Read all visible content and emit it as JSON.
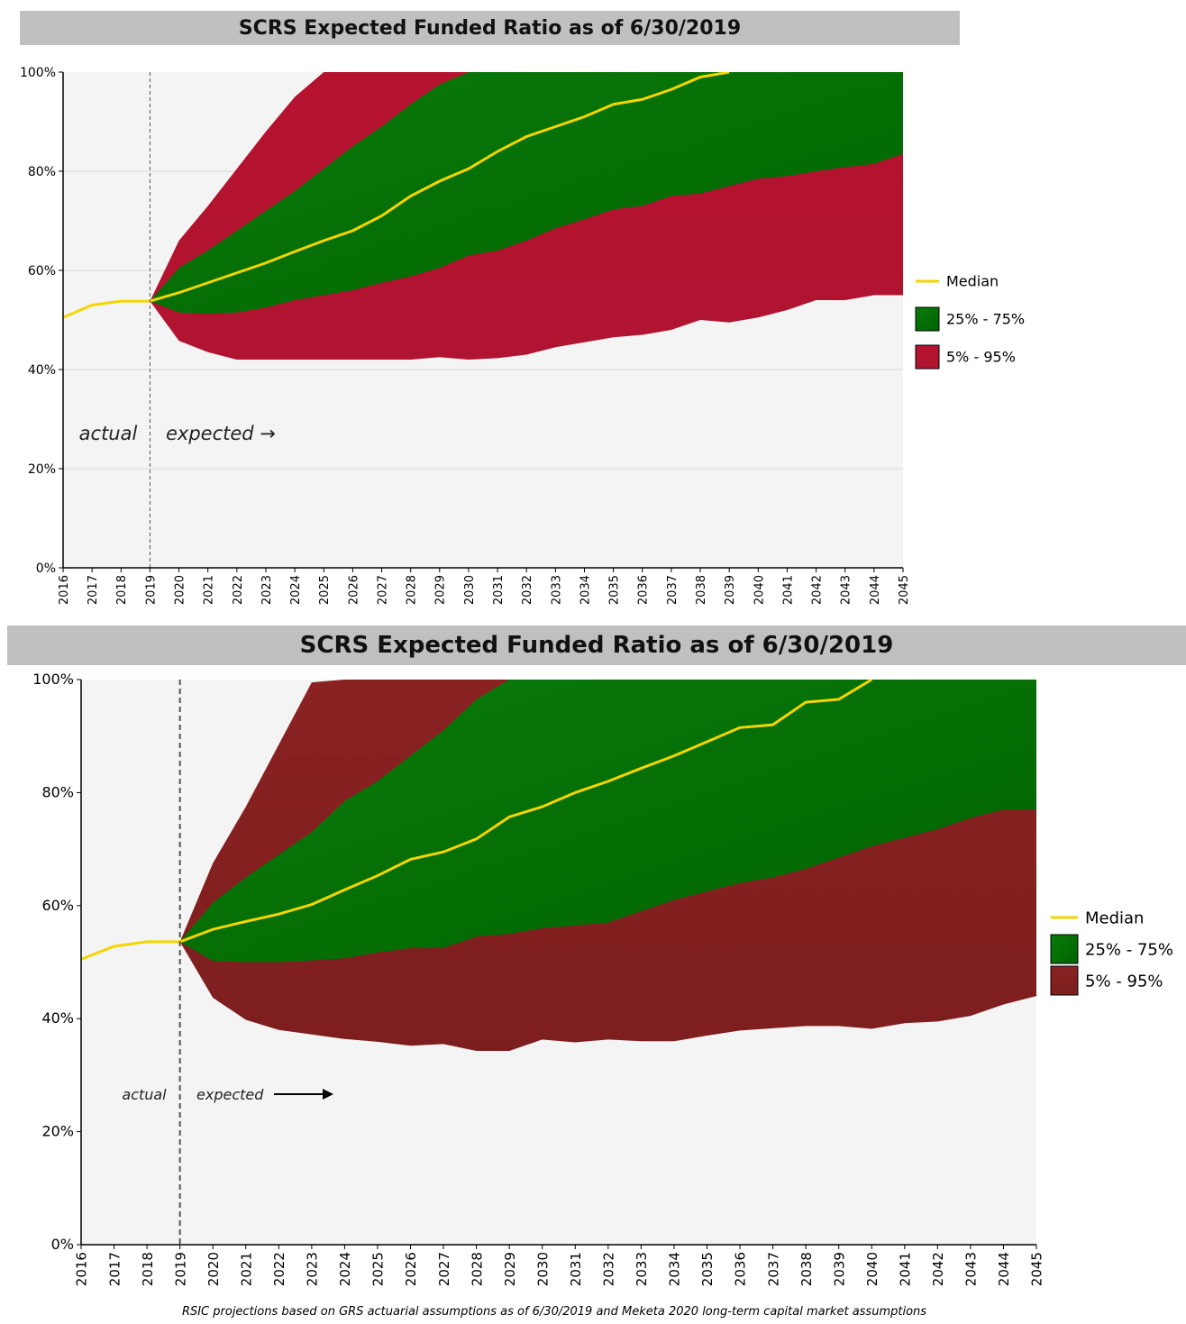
{
  "footnote": "RSIC projections based on GRS actuarial assumptions as of 6/30/2019 and Meketa 2020 long-term capital market assumptions",
  "chart_data": [
    {
      "type": "area",
      "title": "SCRS Expected Funded Ratio as of 6/30/2019",
      "xlabel": "",
      "ylabel": "",
      "ylim": [
        0,
        100
      ],
      "y_tick_labels": [
        "0%",
        "20%",
        "40%",
        "60%",
        "80%",
        "100%"
      ],
      "x": [
        2016,
        2017,
        2018,
        2019,
        2020,
        2021,
        2022,
        2023,
        2024,
        2025,
        2026,
        2027,
        2028,
        2029,
        2030,
        2031,
        2032,
        2033,
        2034,
        2035,
        2036,
        2037,
        2038,
        2039,
        2040,
        2041,
        2042,
        2043,
        2044,
        2045
      ],
      "grid": true,
      "legend_position": "right",
      "annotations": {
        "actual": "actual",
        "expected": "expected →"
      },
      "actual_x": [
        2016,
        2017,
        2018,
        2019
      ],
      "actual_y": [
        50.5,
        53,
        53.8,
        53.8
      ],
      "series": [
        {
          "name": "Median",
          "x": [
            2019,
            2020,
            2021,
            2022,
            2023,
            2024,
            2025,
            2026,
            2027,
            2028,
            2029,
            2030,
            2031,
            2032,
            2033,
            2034,
            2035,
            2036,
            2037,
            2038,
            2039
          ],
          "values": [
            53.8,
            55.5,
            57.5,
            59.5,
            61.5,
            63.8,
            66,
            68,
            71,
            75,
            78,
            80.5,
            84,
            87,
            89,
            91,
            93.5,
            94.5,
            96.5,
            99,
            100
          ]
        },
        {
          "name": "25% - 75%",
          "x": [
            2019,
            2020,
            2021,
            2022,
            2023,
            2024,
            2025,
            2026,
            2027,
            2028,
            2029,
            2030,
            2031,
            2032,
            2033,
            2034,
            2035,
            2036,
            2037,
            2038,
            2039,
            2040,
            2041,
            2042,
            2043,
            2044,
            2045
          ],
          "low": [
            53.8,
            51.5,
            51.2,
            51.5,
            52.5,
            54,
            55,
            56,
            57.5,
            58.8,
            60.5,
            63,
            64,
            66,
            68.5,
            70.3,
            72.3,
            73,
            75,
            75.5,
            77,
            78.5,
            79,
            80,
            80.8,
            81.5,
            83.5
          ],
          "high": [
            53.8,
            60.5,
            64,
            68,
            72,
            76,
            80.5,
            85,
            89,
            93.5,
            97.5,
            100,
            100,
            100,
            100,
            100,
            100,
            100,
            100,
            100,
            100,
            100,
            100,
            100,
            100,
            100,
            100
          ]
        },
        {
          "name": "5% - 95%",
          "x": [
            2019,
            2020,
            2021,
            2022,
            2023,
            2024,
            2025,
            2026,
            2027,
            2028,
            2029,
            2030,
            2031,
            2032,
            2033,
            2034,
            2035,
            2036,
            2037,
            2038,
            2039,
            2040,
            2041,
            2042,
            2043,
            2044,
            2045
          ],
          "low": [
            53.8,
            45.8,
            43.5,
            42,
            42,
            42,
            42,
            42,
            42,
            42,
            42.5,
            42,
            42.3,
            43,
            44.5,
            45.5,
            46.5,
            47,
            48,
            50,
            49.5,
            50.5,
            52,
            54,
            54,
            55,
            55
          ],
          "high": [
            53.8,
            66,
            73,
            80.5,
            88,
            95,
            100,
            100,
            100,
            100,
            100,
            100,
            100,
            100,
            100,
            100,
            100,
            100,
            100,
            100,
            100,
            100,
            100,
            100,
            100,
            100,
            100
          ]
        }
      ]
    },
    {
      "type": "area",
      "title": "SCRS Expected Funded Ratio as of 6/30/2019",
      "xlabel": "",
      "ylabel": "",
      "ylim": [
        0,
        100
      ],
      "y_tick_labels": [
        "0%",
        "20%",
        "40%",
        "60%",
        "80%",
        "100%"
      ],
      "x": [
        2016,
        2017,
        2018,
        2019,
        2020,
        2021,
        2022,
        2023,
        2024,
        2025,
        2026,
        2027,
        2028,
        2029,
        2030,
        2031,
        2032,
        2033,
        2034,
        2035,
        2036,
        2037,
        2038,
        2039,
        2040,
        2041,
        2042,
        2043,
        2044,
        2045
      ],
      "grid": false,
      "legend_position": "right",
      "annotations": {
        "actual": "actual",
        "expected": "expected"
      },
      "actual_x": [
        2016,
        2017,
        2018,
        2019
      ],
      "actual_y": [
        50.5,
        52.8,
        53.6,
        53.6
      ],
      "series": [
        {
          "name": "Median",
          "x": [
            2019,
            2020,
            2021,
            2022,
            2023,
            2024,
            2025,
            2026,
            2027,
            2028,
            2029,
            2030,
            2031,
            2032,
            2033,
            2034,
            2035,
            2036,
            2037,
            2038,
            2039,
            2040
          ],
          "values": [
            53.6,
            55.8,
            57.2,
            58.5,
            60.2,
            62.8,
            65.3,
            68.2,
            69.5,
            71.8,
            75.7,
            77.5,
            80,
            82,
            84.3,
            86.5,
            89,
            91.5,
            92,
            96,
            96.5,
            100
          ]
        },
        {
          "name": "25% - 75%",
          "x": [
            2019,
            2020,
            2021,
            2022,
            2023,
            2024,
            2025,
            2026,
            2027,
            2028,
            2029,
            2030,
            2031,
            2032,
            2033,
            2034,
            2035,
            2036,
            2037,
            2038,
            2039,
            2040,
            2041,
            2042,
            2043,
            2044,
            2045
          ],
          "low": [
            53.6,
            50.2,
            50,
            50,
            50.3,
            50.7,
            51.7,
            52.5,
            52.5,
            54.5,
            55,
            56,
            56.5,
            57,
            59,
            61,
            62.5,
            64,
            65,
            66.5,
            68.5,
            70.5,
            72,
            73.5,
            75.5,
            77,
            77
          ],
          "high": [
            53.6,
            60.5,
            65,
            69,
            73,
            78.5,
            82,
            86.5,
            91,
            96.5,
            100,
            100,
            100,
            100,
            100,
            100,
            100,
            100,
            100,
            100,
            100,
            100,
            100,
            100,
            100,
            100,
            100
          ]
        },
        {
          "name": "5% - 95%",
          "x": [
            2019,
            2020,
            2021,
            2022,
            2023,
            2024,
            2025,
            2026,
            2027,
            2028,
            2029,
            2030,
            2031,
            2032,
            2033,
            2034,
            2035,
            2036,
            2037,
            2038,
            2039,
            2040,
            2041,
            2042,
            2043,
            2044,
            2045
          ],
          "low": [
            53.6,
            43.7,
            39.8,
            38,
            37.2,
            36.4,
            35.9,
            35.2,
            35.5,
            34.3,
            34.3,
            36.3,
            35.8,
            36.3,
            36,
            36,
            37,
            37.9,
            38.3,
            38.7,
            38.7,
            38.2,
            39.2,
            39.5,
            40.5,
            42.5,
            44
          ],
          "high": [
            53.6,
            67.5,
            77.5,
            88.5,
            99.5,
            100,
            100,
            100,
            100,
            100,
            100,
            100,
            100,
            100,
            100,
            100,
            100,
            100,
            100,
            100,
            100,
            100,
            100,
            100,
            100,
            100,
            100
          ]
        }
      ]
    }
  ],
  "colors": {
    "median": "#f5d500",
    "band25_75_top": "#006400",
    "band5_95_top": "#b5122e",
    "band5_95_bottom": "#7d1e1e",
    "plot_bg": "#f4f4f4"
  }
}
